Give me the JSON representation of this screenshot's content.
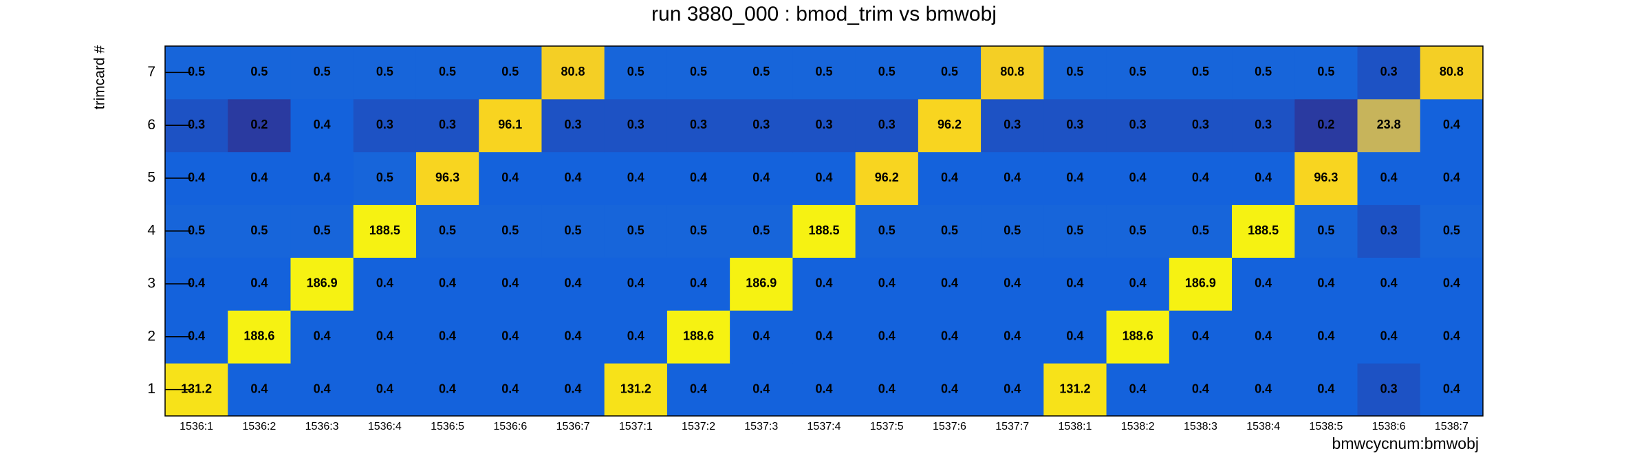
{
  "chart_data": {
    "type": "heatmap",
    "title": "run 3880_000 : bmod_trim vs bmwobj",
    "x_label": "bmwcycnum:bmwobj",
    "y_label": "trimcard #",
    "categories": [
      "1536:1",
      "1536:2",
      "1536:3",
      "1536:4",
      "1536:5",
      "1536:6",
      "1536:7",
      "1537:1",
      "1537:2",
      "1537:3",
      "1537:4",
      "1537:5",
      "1537:6",
      "1537:7",
      "1538:1",
      "1538:2",
      "1538:3",
      "1538:4",
      "1538:5",
      "1538:6",
      "1538:7"
    ],
    "y_categories": [
      1,
      2,
      3,
      4,
      5,
      6,
      7
    ],
    "values": [
      [
        131.2,
        0.4,
        0.4,
        0.4,
        0.4,
        0.4,
        0.4,
        131.2,
        0.4,
        0.4,
        0.4,
        0.4,
        0.4,
        0.4,
        131.2,
        0.4,
        0.4,
        0.4,
        0.4,
        0.3,
        0.4
      ],
      [
        0.4,
        188.6,
        0.4,
        0.4,
        0.4,
        0.4,
        0.4,
        0.4,
        188.6,
        0.4,
        0.4,
        0.4,
        0.4,
        0.4,
        0.4,
        188.6,
        0.4,
        0.4,
        0.4,
        0.4,
        0.4
      ],
      [
        0.4,
        0.4,
        186.9,
        0.4,
        0.4,
        0.4,
        0.4,
        0.4,
        0.4,
        186.9,
        0.4,
        0.4,
        0.4,
        0.4,
        0.4,
        0.4,
        186.9,
        0.4,
        0.4,
        0.4,
        0.4
      ],
      [
        0.5,
        0.5,
        0.5,
        188.5,
        0.5,
        0.5,
        0.5,
        0.5,
        0.5,
        0.5,
        188.5,
        0.5,
        0.5,
        0.5,
        0.5,
        0.5,
        0.5,
        188.5,
        0.5,
        0.3,
        0.5
      ],
      [
        0.4,
        0.4,
        0.4,
        0.5,
        96.3,
        0.4,
        0.4,
        0.4,
        0.4,
        0.4,
        0.4,
        96.2,
        0.4,
        0.4,
        0.4,
        0.4,
        0.4,
        0.4,
        96.3,
        0.4,
        0.4
      ],
      [
        0.3,
        0.2,
        0.4,
        0.3,
        0.3,
        96.1,
        0.3,
        0.3,
        0.3,
        0.3,
        0.3,
        0.3,
        96.2,
        0.3,
        0.3,
        0.3,
        0.3,
        0.3,
        0.2,
        23.8,
        0.4
      ],
      [
        0.5,
        0.5,
        0.5,
        0.5,
        0.5,
        0.5,
        80.8,
        0.5,
        0.5,
        0.5,
        0.5,
        0.5,
        0.5,
        80.8,
        0.5,
        0.5,
        0.5,
        0.5,
        0.5,
        0.3,
        80.8
      ]
    ],
    "log_z": true,
    "colorscale": [
      "#2a3aa0",
      "#1462dc",
      "#1e6ad6",
      "#3a78c4",
      "#5a86ac",
      "#7c9494",
      "#a0a47a",
      "#c8b45a",
      "#e8c034",
      "#f8d420",
      "#f6f212"
    ]
  }
}
